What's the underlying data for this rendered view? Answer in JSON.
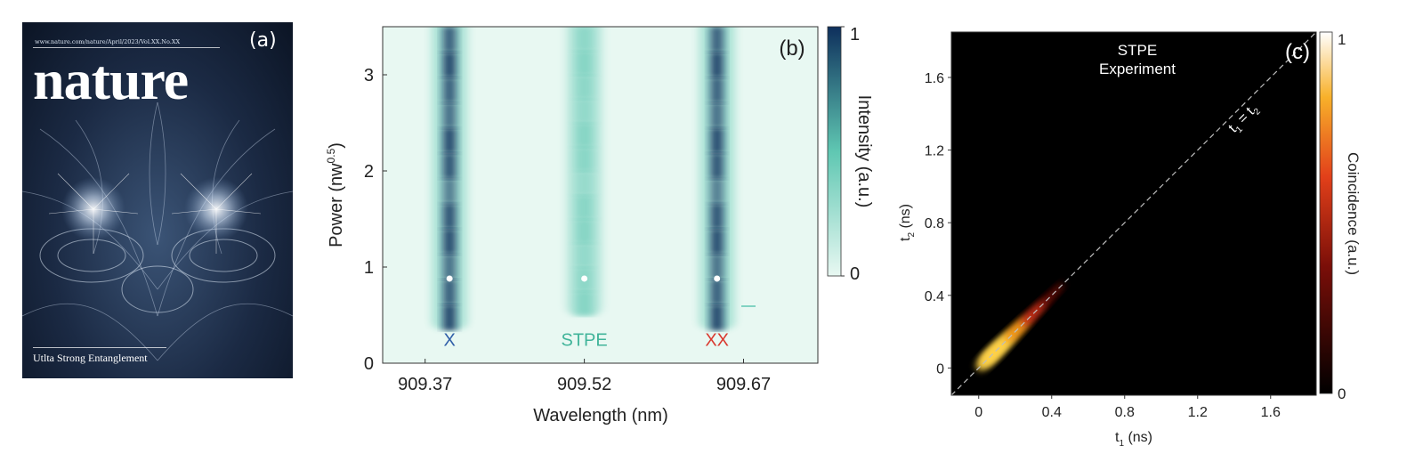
{
  "panel_a": {
    "label": "(a)",
    "cover_url": "www.nature.com/nature/April/2023/Vol.XX.No.XX",
    "brand": "nature",
    "headline": "Utlta Strong Entanglement"
  },
  "chart_data": [
    {
      "type": "heatmap",
      "panel_label": "(b)",
      "xlabel": "Wavelength (nm)",
      "ylabel": "Power (nw",
      "ylabel_sup": "0.5",
      "ylabel_end": ")",
      "x_ticks": [
        "909.37",
        "909.52",
        "909.67"
      ],
      "x_tick_values": [
        909.37,
        909.52,
        909.67
      ],
      "y_ticks": [
        "0",
        "1",
        "2",
        "3"
      ],
      "y_tick_values": [
        0,
        1,
        2,
        3
      ],
      "xlim": [
        909.33,
        909.74
      ],
      "ylim": [
        0,
        3.5
      ],
      "colorbar": {
        "label": "Intensity (a.u.)",
        "min_label": "0",
        "max_label": "1",
        "colors": [
          "#e8f8f2",
          "#5fc7b2",
          "#0e2f5c"
        ]
      },
      "lines": [
        {
          "name": "X",
          "center": 909.393,
          "peak": 1.0,
          "color": "#2f5ea8",
          "onset_power": 0.35
        },
        {
          "name": "STPE",
          "center": 909.52,
          "peak": 0.45,
          "color": "#41b49a",
          "onset_power": 0.5
        },
        {
          "name": "XX",
          "center": 909.645,
          "peak": 1.0,
          "color": "#d9392f",
          "onset_power": 0.35
        }
      ],
      "markers": [
        {
          "x": 909.393,
          "y": 0.88
        },
        {
          "x": 909.52,
          "y": 0.88
        },
        {
          "x": 909.645,
          "y": 0.88
        }
      ],
      "grid": false
    },
    {
      "type": "heatmap",
      "panel_label": "(c)",
      "title_lines": [
        "STPE",
        "Experiment"
      ],
      "xlabel": "t",
      "xlabel_sub": "1",
      "xlabel_end": " (ns)",
      "ylabel": "t",
      "ylabel_sub": "2",
      "ylabel_end": " (ns)",
      "x_ticks": [
        "0",
        "0.4",
        "0.8",
        "1.2",
        "1.6"
      ],
      "x_tick_values": [
        0,
        0.4,
        0.8,
        1.2,
        1.6
      ],
      "y_ticks": [
        "0",
        "0.4",
        "0.8",
        "1.2",
        "1.6"
      ],
      "y_tick_values": [
        0,
        0.4,
        0.8,
        1.2,
        1.6
      ],
      "xlim": [
        -0.15,
        1.85
      ],
      "ylim": [
        -0.15,
        1.85
      ],
      "diagonal_label": "t1 = t2",
      "diagonal_label_parts": [
        "t",
        "1",
        " = t",
        "2"
      ],
      "colorbar": {
        "label": "Coincidence (a.u.)",
        "min_label": "0",
        "max_label": "1",
        "colors": [
          "#000000",
          "#b01a10",
          "#f6a21e",
          "#ffffff"
        ]
      },
      "blob": {
        "t1_start": 0.03,
        "t1_end": 0.45,
        "peak_t1": 0.08
      },
      "grid": false
    }
  ]
}
